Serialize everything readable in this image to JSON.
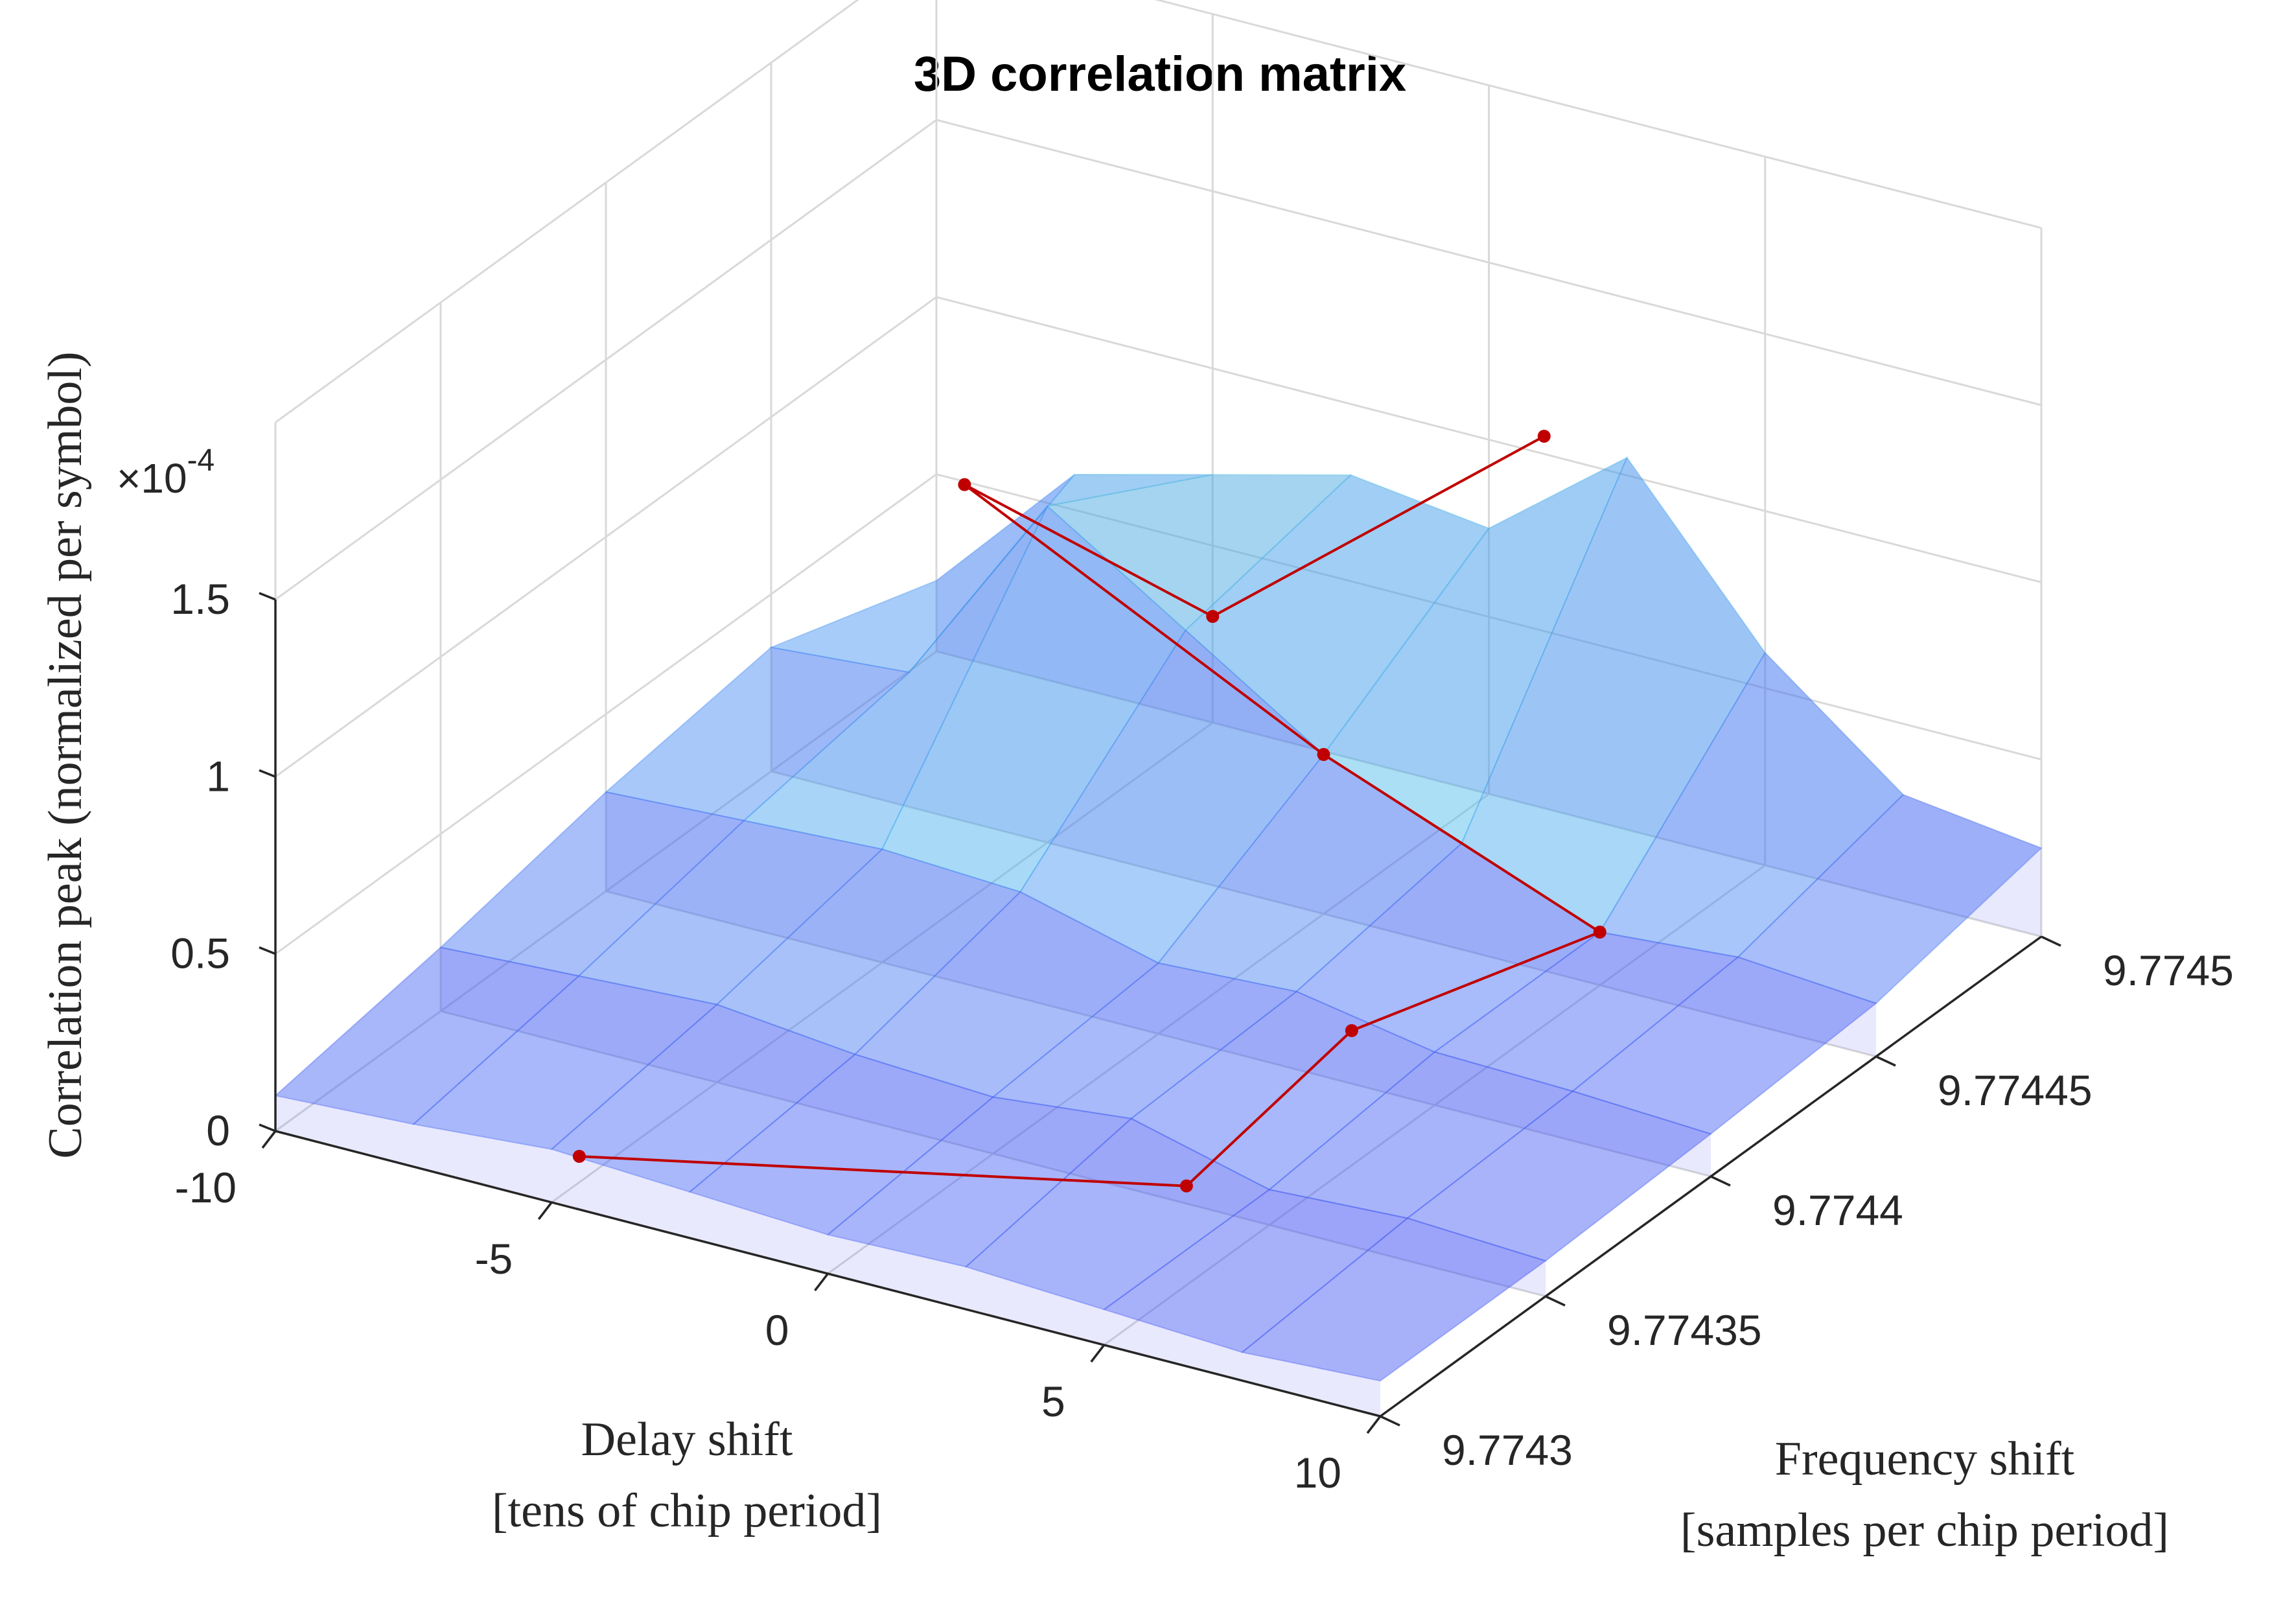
{
  "chart_data": {
    "type": "surface",
    "title": "3D correlation matrix",
    "xlabel_lines": [
      "Delay shift",
      "[tens of chip period]"
    ],
    "ylabel_lines": [
      "Frequency shift",
      "[samples per chip period]"
    ],
    "zlabel": "Correlation peak (normalized per symbol)",
    "z_exponent_prefix": "×10",
    "z_exponent_power": "-4",
    "xlim": [
      -10,
      10
    ],
    "ylim": [
      9.7743,
      9.7745
    ],
    "zlim": [
      0,
      1.5
    ],
    "x_ticks": [
      -10,
      -5,
      0,
      5,
      10
    ],
    "x_tick_labels": [
      "-10",
      "-5",
      "0",
      "5",
      "10"
    ],
    "y_ticks": [
      9.7743,
      9.77435,
      9.7744,
      9.77445,
      9.7745
    ],
    "y_tick_labels": [
      "9.7743",
      "9.77435",
      "9.7744",
      "9.77445",
      "9.7745"
    ],
    "z_ticks": [
      0,
      0.5,
      1,
      1.5
    ],
    "z_tick_labels": [
      "0",
      "0.5",
      "1",
      "1.5"
    ],
    "grid": true,
    "colormap": [
      "#3b3bf5",
      "#3f7ff2",
      "#3fb4ee",
      "#5fd6d6",
      "#a9e6b0",
      "#f5ef8f"
    ],
    "surface_alpha": 0.45,
    "peak_path_color": "#c00000",
    "peak_path": [
      {
        "x": -4.5,
        "y": 9.7743,
        "z": 0.15
      },
      {
        "x": 3.5,
        "y": 9.77435,
        "z": 0.05
      },
      {
        "x": 3.5,
        "y": 9.7744,
        "z": 0.15
      },
      {
        "x": 5.0,
        "y": 9.77445,
        "z": 0.15
      },
      {
        "x": 0.0,
        "y": 9.77445,
        "z": 0.45
      },
      {
        "x": -6.5,
        "y": 9.77445,
        "z": 0.95
      },
      {
        "x": -5.0,
        "y": 9.7745,
        "z": 0.3
      },
      {
        "x": 1.0,
        "y": 9.7745,
        "z": 1.05
      }
    ],
    "surfaces": [
      {
        "y": 9.7743,
        "x": [
          -10,
          -7.5,
          -5,
          -2.5,
          0,
          2.5,
          5,
          7.5,
          10
        ],
        "z": [
          0.1,
          0.12,
          0.15,
          0.13,
          0.11,
          0.12,
          0.1,
          0.08,
          0.1
        ]
      },
      {
        "y": 9.77435,
        "x": [
          -10,
          -7.5,
          -5,
          -2.5,
          0,
          2.5,
          5,
          7.5,
          10
        ],
        "z": [
          0.18,
          0.2,
          0.22,
          0.18,
          0.16,
          0.2,
          0.1,
          0.12,
          0.1
        ]
      },
      {
        "y": 9.7744,
        "x": [
          -10,
          -7.5,
          -5,
          -2.5,
          0,
          2.5,
          5,
          7.5,
          10
        ],
        "z": [
          0.28,
          0.3,
          0.32,
          0.3,
          0.2,
          0.22,
          0.15,
          0.14,
          0.12
        ]
      },
      {
        "y": 9.77445,
        "x": [
          -10,
          -7.5,
          -5,
          -2.5,
          0,
          2.5,
          5,
          7.5,
          10
        ],
        "z": [
          0.35,
          0.38,
          0.95,
          0.7,
          0.45,
          0.3,
          0.15,
          0.18,
          0.15
        ]
      },
      {
        "y": 9.7745,
        "x": [
          -10,
          -7.5,
          -5,
          -2.5,
          0,
          2.5,
          5,
          7.5,
          10
        ],
        "z": [
          0.2,
          0.6,
          0.7,
          0.8,
          0.75,
          1.05,
          0.6,
          0.3,
          0.25
        ]
      }
    ]
  }
}
